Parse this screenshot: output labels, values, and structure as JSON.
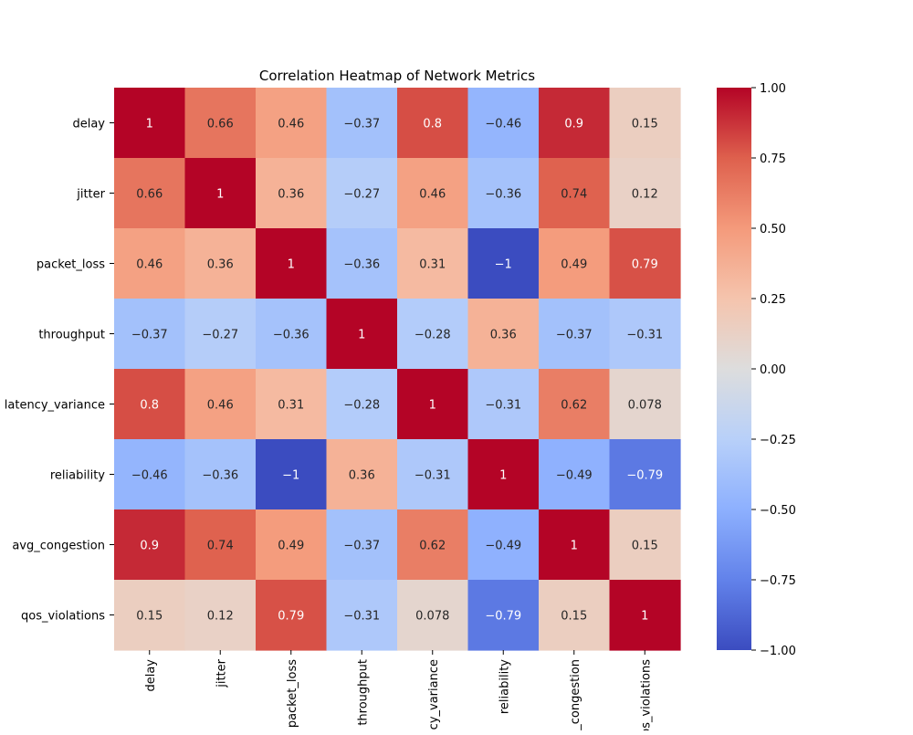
{
  "chart_data": {
    "type": "heatmap",
    "title": "Correlation Heatmap of Network Metrics",
    "xlabel": "",
    "ylabel": "",
    "row_labels": [
      "delay",
      "jitter",
      "packet_loss",
      "throughput",
      "latency_variance",
      "reliability",
      "avg_congestion",
      "qos_violations"
    ],
    "col_labels": [
      "delay",
      "jitter",
      "packet_loss",
      "throughput",
      "latency_variance",
      "reliability",
      "avg_congestion",
      "qos_violations"
    ],
    "values": [
      [
        1,
        0.66,
        0.46,
        -0.37,
        0.8,
        -0.46,
        0.9,
        0.15
      ],
      [
        0.66,
        1,
        0.36,
        -0.27,
        0.46,
        -0.36,
        0.74,
        0.12
      ],
      [
        0.46,
        0.36,
        1,
        -0.36,
        0.31,
        -1,
        0.49,
        0.79
      ],
      [
        -0.37,
        -0.27,
        -0.36,
        1,
        -0.28,
        0.36,
        -0.37,
        -0.31
      ],
      [
        0.8,
        0.46,
        0.31,
        -0.28,
        1,
        -0.31,
        0.62,
        0.078
      ],
      [
        -0.46,
        -0.36,
        -1,
        0.36,
        -0.31,
        1,
        -0.49,
        -0.79
      ],
      [
        0.9,
        0.74,
        0.49,
        -0.37,
        0.62,
        -0.49,
        1,
        0.15
      ],
      [
        0.15,
        0.12,
        0.79,
        -0.31,
        0.078,
        -0.79,
        0.15,
        1
      ]
    ],
    "colormap": "coolwarm",
    "vmin": -1,
    "vmax": 1,
    "colorbar_ticks": [
      "1.00",
      "0.75",
      "0.50",
      "0.25",
      "0.00",
      "−0.25",
      "−0.50",
      "−0.75",
      "−1.00"
    ],
    "colorbar_tick_values": [
      1,
      0.75,
      0.5,
      0.25,
      0,
      -0.25,
      -0.5,
      -0.75,
      -1
    ],
    "grid": false,
    "legend": "colorbar-right"
  }
}
